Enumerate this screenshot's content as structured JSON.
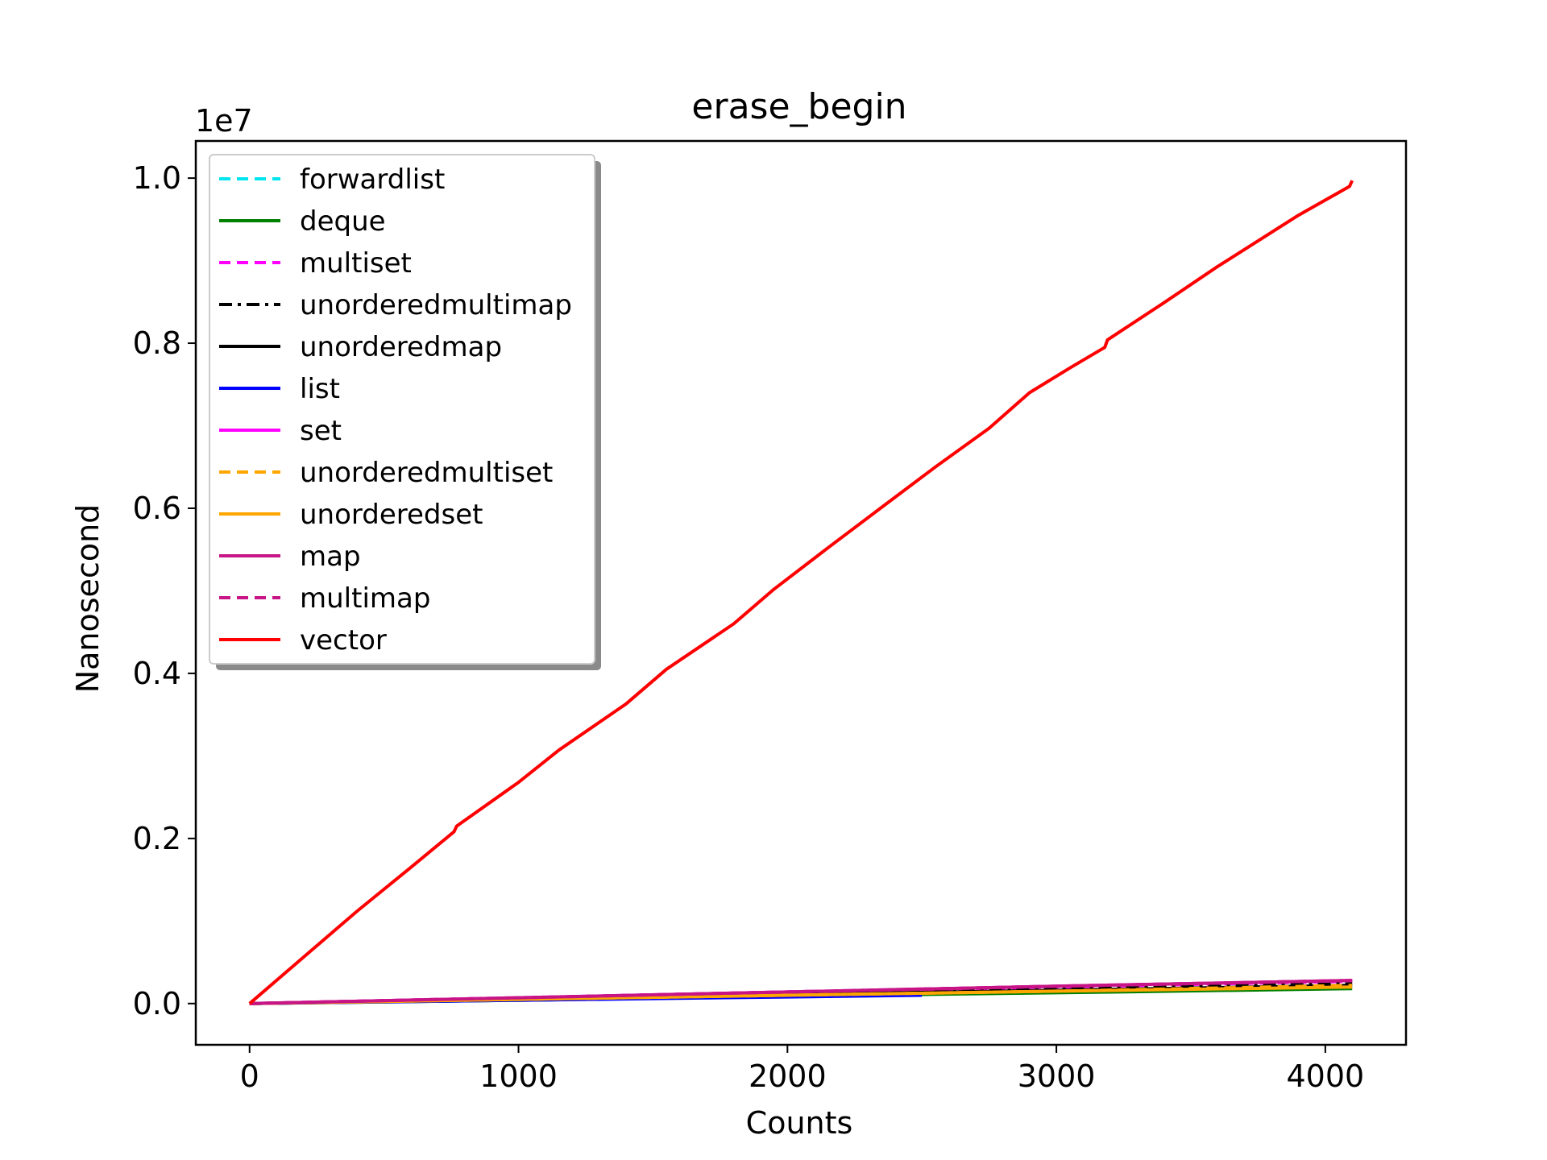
{
  "chart_data": {
    "type": "line",
    "title": "erase_begin",
    "xlabel": "Counts",
    "ylabel": "Nanosecond",
    "y_scale_label": "1e7",
    "xlim": [
      -200,
      4300
    ],
    "ylim": [
      -0.05,
      1.045
    ],
    "y_unit_multiplier": 10000000,
    "xticks": [
      0,
      1000,
      2000,
      3000,
      4000
    ],
    "xtick_labels": [
      "0",
      "1000",
      "2000",
      "3000",
      "4000"
    ],
    "yticks": [
      0.0,
      0.2,
      0.4,
      0.6,
      0.8,
      1.0
    ],
    "ytick_labels": [
      "0.0",
      "0.2",
      "0.4",
      "0.6",
      "0.8",
      "1.0"
    ],
    "grid": false,
    "legend_position": "upper-left",
    "series": [
      {
        "name": "forwardlist",
        "color": "#00e5ee",
        "style": "dashed",
        "x": [
          0,
          1000,
          2000,
          3000,
          4100
        ],
        "y": [
          0.0,
          0.005,
          0.01,
          0.016,
          0.021
        ]
      },
      {
        "name": "deque",
        "color": "#008000",
        "style": "solid",
        "x": [
          0,
          1000,
          2000,
          3000,
          4100
        ],
        "y": [
          0.0,
          0.004,
          0.009,
          0.013,
          0.018
        ]
      },
      {
        "name": "multiset",
        "color": "#ff00ff",
        "style": "dashed",
        "x": [
          0,
          1000,
          2000,
          3000,
          4100
        ],
        "y": [
          0.0,
          0.007,
          0.014,
          0.02,
          0.027
        ]
      },
      {
        "name": "unorderedmultimap",
        "color": "#000000",
        "style": "dashdot",
        "x": [
          0,
          1000,
          2000,
          3000,
          4100
        ],
        "y": [
          0.0,
          0.006,
          0.012,
          0.018,
          0.024
        ]
      },
      {
        "name": "unorderedmap",
        "color": "#000000",
        "style": "solid",
        "x": [
          0,
          1000,
          2000,
          3000,
          4100
        ],
        "y": [
          0.0,
          0.005,
          0.011,
          0.016,
          0.022
        ]
      },
      {
        "name": "list",
        "color": "#0000ff",
        "style": "solid",
        "x": [
          0,
          1000,
          2000,
          2500
        ],
        "y": [
          0.0,
          0.004,
          0.008,
          0.01
        ]
      },
      {
        "name": "set",
        "color": "#ff00ff",
        "style": "solid",
        "x": [
          0,
          1000,
          2000,
          3000,
          4100
        ],
        "y": [
          0.0,
          0.007,
          0.014,
          0.021,
          0.028
        ]
      },
      {
        "name": "unorderedmultiset",
        "color": "#ffa500",
        "style": "dashed",
        "x": [
          0,
          1000,
          2000,
          3000,
          4100
        ],
        "y": [
          0.0,
          0.005,
          0.01,
          0.015,
          0.022
        ]
      },
      {
        "name": "unorderedset",
        "color": "#ffa500",
        "style": "solid",
        "x": [
          0,
          1000,
          2000,
          3000,
          4100
        ],
        "y": [
          0.0,
          0.005,
          0.01,
          0.015,
          0.02
        ]
      },
      {
        "name": "map",
        "color": "#c71585",
        "style": "solid",
        "x": [
          0,
          1000,
          2000,
          3000,
          4100
        ],
        "y": [
          0.0,
          0.007,
          0.014,
          0.021,
          0.028
        ]
      },
      {
        "name": "multimap",
        "color": "#c71585",
        "style": "dashed",
        "x": [
          0,
          1000,
          2000,
          3000,
          4100
        ],
        "y": [
          0.0,
          0.007,
          0.014,
          0.021,
          0.028
        ]
      },
      {
        "name": "vector",
        "color": "#ff0000",
        "style": "solid",
        "x": [
          0,
          200,
          400,
          600,
          760,
          770,
          1000,
          1150,
          1400,
          1550,
          1800,
          1950,
          2150,
          2350,
          2550,
          2750,
          2900,
          3050,
          3180,
          3190,
          3400,
          3600,
          3900,
          4090,
          4100
        ],
        "y": [
          0.0,
          0.056,
          0.112,
          0.165,
          0.208,
          0.215,
          0.268,
          0.307,
          0.363,
          0.405,
          0.46,
          0.502,
          0.552,
          0.601,
          0.65,
          0.697,
          0.74,
          0.77,
          0.795,
          0.804,
          0.849,
          0.893,
          0.955,
          0.99,
          0.997
        ]
      }
    ]
  }
}
